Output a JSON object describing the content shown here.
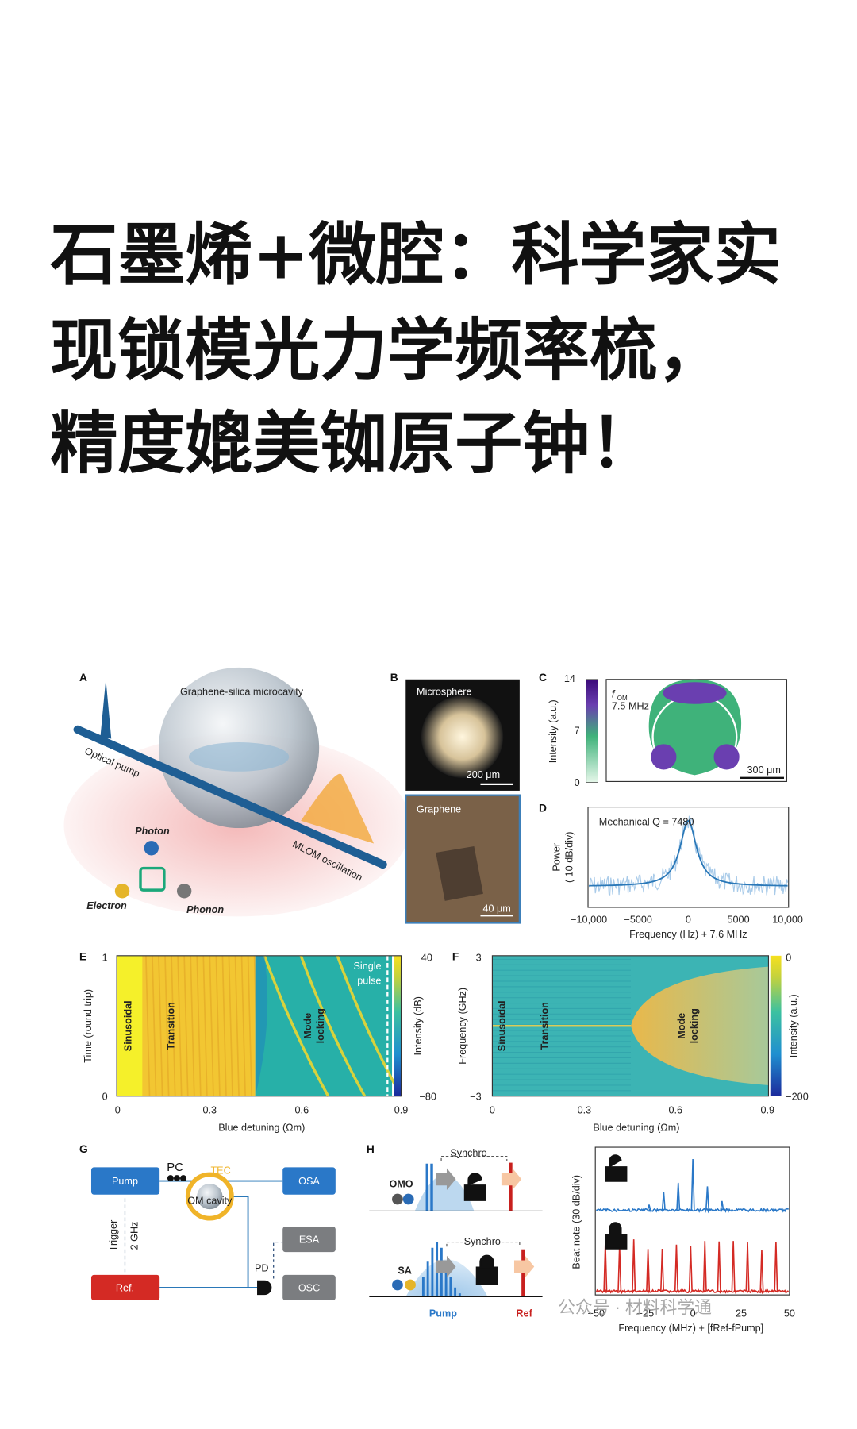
{
  "title": {
    "lines": [
      "石墨烯+微腔：科学家实",
      "现锁模光力学频率梳，",
      "精度媲美铷原子钟！"
    ]
  },
  "figure": {
    "a": {
      "label": "A",
      "title": "Graphene-silica microcavity",
      "pump": "Optical pump",
      "photon": "Photon",
      "electron": "Electron",
      "phonon": "Phonon",
      "oscillation": "MLOM oscillation"
    },
    "b": {
      "label": "B",
      "top": "Microsphere",
      "top_scale": "200 μm",
      "bottom": "Graphene",
      "bottom_scale": "40 μm"
    },
    "c": {
      "label": "C",
      "colorbar_ticks": [
        "14",
        "7",
        "0"
      ],
      "colorbar_label": "Intensity (a.u.)",
      "mode_symbol": "f",
      "mode_subscript": "OM",
      "frequency": "7.5 MHz",
      "scale": "300 μm"
    },
    "d": {
      "label": "D",
      "annotation": "Mechanical Q = 7480",
      "y_label": [
        "Power",
        "( 10 dB/div)"
      ],
      "x_ticks": [
        "−10,000",
        "−5000",
        "0",
        "5000",
        "10,000"
      ],
      "x_label": "Frequency (Hz) + 7.6 MHz"
    },
    "e": {
      "label": "E",
      "y_ticks": [
        "1",
        "0"
      ],
      "y_label": "Time (round trip)",
      "sinusoidal": "Sinusoidal",
      "transition": "Transition",
      "mode_locking": [
        "Mode",
        "locking"
      ],
      "single_pulse": [
        "Single",
        "pulse"
      ],
      "colorbar_ticks": [
        "40",
        "−80"
      ],
      "colorbar_label": "Intensity (dB)",
      "x_ticks": [
        "0",
        "0.3",
        "0.6",
        "0.9"
      ],
      "x_label": "Blue detuning (Ωm)"
    },
    "f": {
      "label": "F",
      "y_ticks": [
        "3",
        "−3"
      ],
      "y_label": "Frequency (GHz)",
      "sinusoidal": "Sinusoidal",
      "transition": "Transition",
      "mode_locking": [
        "Mode",
        "locking"
      ],
      "colorbar_ticks": [
        "0",
        "−200"
      ],
      "colorbar_label": "Intensity (a.u.)",
      "x_ticks": [
        "0",
        "0.3",
        "0.6",
        "0.9"
      ],
      "x_label": "Blue detuning (Ωm)"
    },
    "g": {
      "label": "G",
      "pump": "Pump",
      "pc": "PC",
      "tec": "TEC",
      "cavity": "OM cavity",
      "osa": "OSA",
      "trigger": "Trigger",
      "rate": "2 GHz",
      "esa": "ESA",
      "pd": "PD",
      "ref": "Ref.",
      "osc": "OSC"
    },
    "h": {
      "label": "H",
      "synchro": [
        "Synchro",
        "Synchro"
      ],
      "omo": "OMO",
      "sa": "SA",
      "pump": "Pump",
      "ref": "Ref",
      "y_label": "Beat note (30 dB/div)",
      "x_ticks": [
        "−50",
        "−25",
        "0",
        "25",
        "50"
      ],
      "x_label": "Frequency (MHz) + [fRef-fPump]"
    }
  },
  "watermark": "公众号 · 材料科学通"
}
